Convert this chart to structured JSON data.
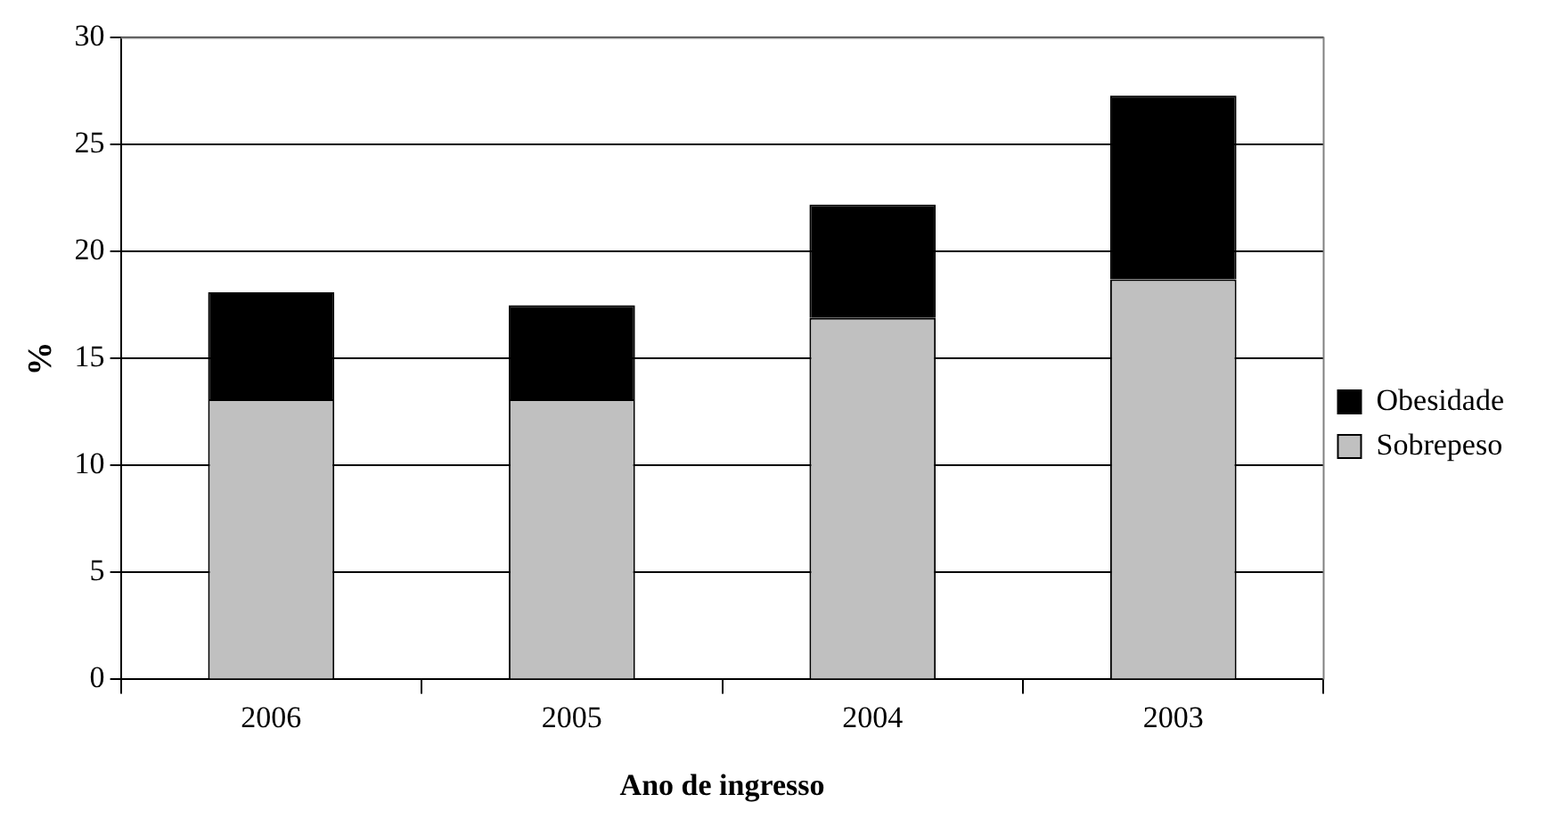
{
  "chart_data": {
    "type": "bar",
    "stacked": true,
    "xlabel": "Ano de ingresso",
    "ylabel": "%",
    "categories": [
      "2006",
      "2005",
      "2004",
      "2003"
    ],
    "series": [
      {
        "name": "Sobrepeso",
        "color": "#c0c0c0",
        "values": [
          13.1,
          13.1,
          16.9,
          18.7
        ]
      },
      {
        "name": "Obesidade",
        "color": "#000000",
        "values": [
          5.0,
          4.4,
          5.3,
          8.6
        ]
      }
    ],
    "ylim": [
      0,
      30
    ],
    "yticks": [
      0,
      5,
      10,
      15,
      20,
      25,
      30
    ],
    "grid": "y",
    "legend": "right"
  }
}
